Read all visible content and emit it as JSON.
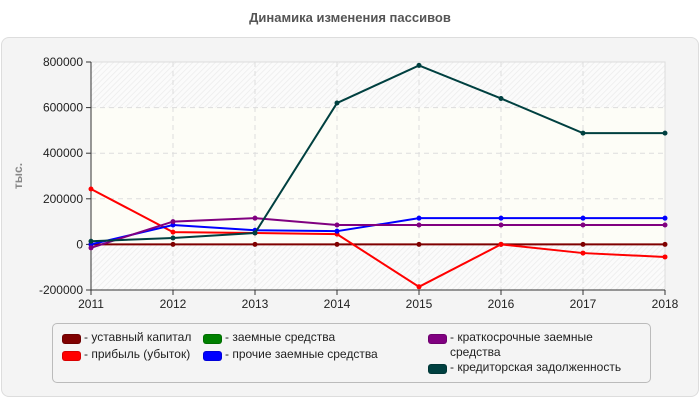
{
  "chart_data": {
    "type": "line",
    "title": "Динамика изменения пассивов",
    "xlabel": "",
    "ylabel": "тыс.",
    "x": [
      "2011",
      "2012",
      "2013",
      "2014",
      "2015",
      "2016",
      "2017",
      "2018"
    ],
    "ylim": [
      -200000,
      800000
    ],
    "yticks": [
      "800000",
      "600000",
      "400000",
      "200000",
      "0",
      "-200000"
    ],
    "grid": true,
    "legend_position": "bottom",
    "series": [
      {
        "name": "уставный капитал",
        "color": "#7f0000",
        "values": [
          0,
          0,
          0,
          0,
          0,
          0,
          0,
          0
        ]
      },
      {
        "name": "прибыль (убыток)",
        "color": "#ff0000",
        "values": [
          243000,
          54000,
          50000,
          45000,
          -186000,
          0,
          -38000,
          -55000
        ]
      },
      {
        "name": "заемные средства",
        "color": "#008000",
        "values": []
      },
      {
        "name": "прочие заемные средства",
        "color": "#0000ff",
        "values": [
          0,
          85000,
          62000,
          58000,
          115000,
          115000,
          115000,
          115000
        ]
      },
      {
        "name": "краткосрочные заемные средства",
        "color": "#800080",
        "values": [
          -15000,
          100000,
          115000,
          85000,
          85000,
          85000,
          85000,
          85000
        ]
      },
      {
        "name": "кредиторская задолженность",
        "color": "#004040",
        "values": [
          14000,
          28000,
          50000,
          620000,
          785000,
          640000,
          488000,
          488000
        ]
      }
    ]
  },
  "legend": {
    "items": [
      {
        "label": "- уставный капитал",
        "color": "#7f0000"
      },
      {
        "label": "- прибыль (убыток)",
        "color": "#ff0000"
      },
      {
        "label": "- заемные средства",
        "color": "#008000"
      },
      {
        "label": "- прочие заемные средства",
        "color": "#0000ff"
      },
      {
        "label": "- краткосрочные заемные средства",
        "color": "#800080"
      },
      {
        "label": "- кредиторская задолженность",
        "color": "#004040"
      }
    ]
  }
}
